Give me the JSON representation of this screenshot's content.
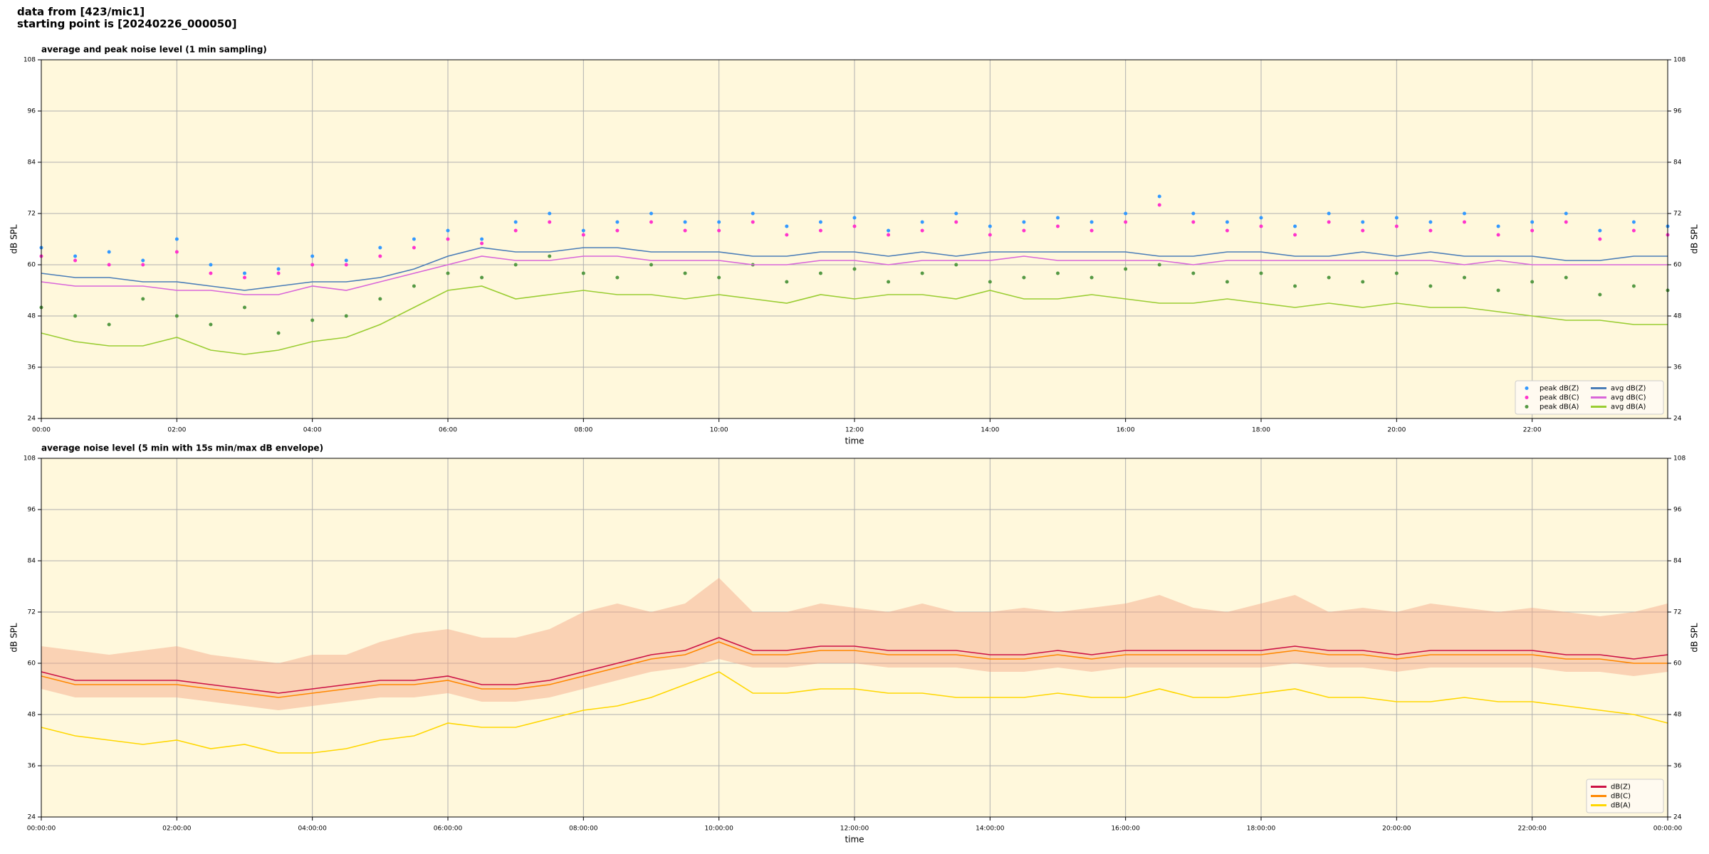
{
  "header": {
    "line1": "data from [423/mic1]",
    "line2": "starting point is [20240226_000050]"
  },
  "chart_data": [
    {
      "type": "line",
      "title": "average and peak noise level (1 min sampling)",
      "xlabel": "time",
      "ylabel": "dB SPL",
      "background": "#fff8dc",
      "grid": true,
      "legend": "lower right",
      "legend_columns": 2,
      "xlim": [
        0,
        24
      ],
      "ylim": [
        24,
        108
      ],
      "yticks": [
        24,
        36,
        48,
        60,
        72,
        84,
        96,
        108
      ],
      "xticks": [
        {
          "value": 0,
          "label": "00:00"
        },
        {
          "value": 2,
          "label": "02:00"
        },
        {
          "value": 4,
          "label": "04:00"
        },
        {
          "value": 6,
          "label": "06:00"
        },
        {
          "value": 8,
          "label": "08:00"
        },
        {
          "value": 10,
          "label": "10:00"
        },
        {
          "value": 12,
          "label": "12:00"
        },
        {
          "value": 14,
          "label": "14:00"
        },
        {
          "value": 16,
          "label": "16:00"
        },
        {
          "value": 18,
          "label": "18:00"
        },
        {
          "value": 20,
          "label": "20:00"
        },
        {
          "value": 22,
          "label": "22:00"
        }
      ],
      "x": [
        0,
        0.5,
        1,
        1.5,
        2,
        2.5,
        3,
        3.5,
        4,
        4.5,
        5,
        5.5,
        6,
        6.5,
        7,
        7.5,
        8,
        8.5,
        9,
        9.5,
        10,
        10.5,
        11,
        11.5,
        12,
        12.5,
        13,
        13.5,
        14,
        14.5,
        15,
        15.5,
        16,
        16.5,
        17,
        17.5,
        18,
        18.5,
        19,
        19.5,
        20,
        20.5,
        21,
        21.5,
        22,
        22.5,
        23,
        23.5,
        24
      ],
      "series": [
        {
          "name": "peak dB(Z)",
          "style": "points",
          "color": "#3399ff",
          "values": [
            64,
            62,
            63,
            61,
            66,
            60,
            58,
            59,
            62,
            61,
            64,
            66,
            68,
            66,
            70,
            72,
            68,
            70,
            72,
            70,
            70,
            72,
            69,
            70,
            71,
            68,
            70,
            72,
            69,
            70,
            71,
            70,
            72,
            76,
            72,
            70,
            71,
            69,
            72,
            70,
            71,
            70,
            72,
            69,
            70,
            72,
            68,
            70,
            69
          ]
        },
        {
          "name": "peak dB(C)",
          "style": "points",
          "color": "#ff33cc",
          "values": [
            62,
            61,
            60,
            60,
            63,
            58,
            57,
            58,
            60,
            60,
            62,
            64,
            66,
            65,
            68,
            70,
            67,
            68,
            70,
            68,
            68,
            70,
            67,
            68,
            69,
            67,
            68,
            70,
            67,
            68,
            69,
            68,
            70,
            74,
            70,
            68,
            69,
            67,
            70,
            68,
            69,
            68,
            70,
            67,
            68,
            70,
            66,
            68,
            67
          ]
        },
        {
          "name": "peak dB(A)",
          "style": "points",
          "color": "#559944",
          "values": [
            50,
            48,
            46,
            52,
            48,
            46,
            50,
            44,
            47,
            48,
            52,
            55,
            58,
            57,
            60,
            62,
            58,
            57,
            60,
            58,
            57,
            60,
            56,
            58,
            59,
            56,
            58,
            60,
            56,
            57,
            58,
            57,
            59,
            60,
            58,
            56,
            58,
            55,
            57,
            56,
            58,
            55,
            57,
            54,
            56,
            57,
            53,
            55,
            54
          ]
        },
        {
          "name": "avg dB(Z)",
          "style": "line",
          "color": "#4a7db8",
          "values": [
            58,
            57,
            57,
            56,
            56,
            55,
            54,
            55,
            56,
            56,
            57,
            59,
            62,
            64,
            63,
            63,
            64,
            64,
            63,
            63,
            63,
            62,
            62,
            63,
            63,
            62,
            63,
            62,
            63,
            63,
            63,
            63,
            63,
            62,
            62,
            63,
            63,
            62,
            62,
            63,
            62,
            63,
            62,
            62,
            62,
            61,
            61,
            62,
            62
          ]
        },
        {
          "name": "avg dB(C)",
          "style": "line",
          "color": "#d966d9",
          "values": [
            56,
            55,
            55,
            55,
            54,
            54,
            53,
            53,
            55,
            54,
            56,
            58,
            60,
            62,
            61,
            61,
            62,
            62,
            61,
            61,
            61,
            60,
            60,
            61,
            61,
            60,
            61,
            61,
            61,
            62,
            61,
            61,
            61,
            61,
            60,
            61,
            61,
            61,
            61,
            61,
            61,
            61,
            60,
            61,
            60,
            60,
            60,
            60,
            60
          ]
        },
        {
          "name": "avg dB(A)",
          "style": "line",
          "color": "#9acd32",
          "values": [
            44,
            42,
            41,
            41,
            43,
            40,
            39,
            40,
            42,
            43,
            46,
            50,
            54,
            55,
            52,
            53,
            54,
            53,
            53,
            52,
            53,
            52,
            51,
            53,
            52,
            53,
            53,
            52,
            54,
            52,
            52,
            53,
            52,
            51,
            51,
            52,
            51,
            50,
            51,
            50,
            51,
            50,
            50,
            49,
            48,
            47,
            47,
            46,
            46
          ]
        }
      ]
    },
    {
      "type": "line",
      "title": "average noise level (5 min with 15s min/max dB envelope)",
      "xlabel": "time",
      "ylabel": "dB SPL",
      "background": "#fff8dc",
      "grid": true,
      "legend": "lower right",
      "legend_columns": 1,
      "xlim": [
        0,
        24
      ],
      "ylim": [
        24,
        108
      ],
      "yticks": [
        24,
        36,
        48,
        60,
        72,
        84,
        96,
        108
      ],
      "xticks": [
        {
          "value": 0,
          "label": "00:00:00"
        },
        {
          "value": 2,
          "label": "02:00:00"
        },
        {
          "value": 4,
          "label": "04:00:00"
        },
        {
          "value": 6,
          "label": "06:00:00"
        },
        {
          "value": 8,
          "label": "08:00:00"
        },
        {
          "value": 10,
          "label": "10:00:00"
        },
        {
          "value": 12,
          "label": "12:00:00"
        },
        {
          "value": 14,
          "label": "14:00:00"
        },
        {
          "value": 16,
          "label": "16:00:00"
        },
        {
          "value": 18,
          "label": "18:00:00"
        },
        {
          "value": 20,
          "label": "20:00:00"
        },
        {
          "value": 22,
          "label": "22:00:00"
        },
        {
          "value": 24,
          "label": "00:00:00"
        }
      ],
      "x": [
        0,
        0.5,
        1,
        1.5,
        2,
        2.5,
        3,
        3.5,
        4,
        4.5,
        5,
        5.5,
        6,
        6.5,
        7,
        7.5,
        8,
        8.5,
        9,
        9.5,
        10,
        10.5,
        11,
        11.5,
        12,
        12.5,
        13,
        13.5,
        14,
        14.5,
        15,
        15.5,
        16,
        16.5,
        17,
        17.5,
        18,
        18.5,
        19,
        19.5,
        20,
        20.5,
        21,
        21.5,
        22,
        22.5,
        23,
        23.5,
        24
      ],
      "envelope": {
        "color": "#f4a582",
        "low": [
          54,
          52,
          52,
          52,
          52,
          51,
          50,
          49,
          50,
          51,
          52,
          52,
          53,
          51,
          51,
          52,
          54,
          56,
          58,
          59,
          61,
          59,
          59,
          60,
          60,
          59,
          59,
          59,
          58,
          58,
          59,
          58,
          59,
          59,
          59,
          59,
          59,
          60,
          59,
          59,
          58,
          59,
          59,
          59,
          59,
          58,
          58,
          57,
          58
        ],
        "high": [
          64,
          63,
          62,
          63,
          64,
          62,
          61,
          60,
          62,
          62,
          65,
          67,
          68,
          66,
          66,
          68,
          72,
          74,
          72,
          74,
          80,
          72,
          72,
          74,
          73,
          72,
          74,
          72,
          72,
          73,
          72,
          73,
          74,
          76,
          73,
          72,
          74,
          76,
          72,
          73,
          72,
          74,
          73,
          72,
          73,
          72,
          71,
          72,
          74
        ]
      },
      "series": [
        {
          "name": "dB(Z)",
          "style": "line",
          "color": "#cc1144",
          "values": [
            58,
            56,
            56,
            56,
            56,
            55,
            54,
            53,
            54,
            55,
            56,
            56,
            57,
            55,
            55,
            56,
            58,
            60,
            62,
            63,
            66,
            63,
            63,
            64,
            64,
            63,
            63,
            63,
            62,
            62,
            63,
            62,
            63,
            63,
            63,
            63,
            63,
            64,
            63,
            63,
            62,
            63,
            63,
            63,
            63,
            62,
            62,
            61,
            62
          ]
        },
        {
          "name": "dB(C)",
          "style": "line",
          "color": "#ff8800",
          "values": [
            57,
            55,
            55,
            55,
            55,
            54,
            53,
            52,
            53,
            54,
            55,
            55,
            56,
            54,
            54,
            55,
            57,
            59,
            61,
            62,
            65,
            62,
            62,
            63,
            63,
            62,
            62,
            62,
            61,
            61,
            62,
            61,
            62,
            62,
            62,
            62,
            62,
            63,
            62,
            62,
            61,
            62,
            62,
            62,
            62,
            61,
            61,
            60,
            60
          ]
        },
        {
          "name": "dB(A)",
          "style": "line",
          "color": "#ffd700",
          "values": [
            45,
            43,
            42,
            41,
            42,
            40,
            41,
            39,
            39,
            40,
            42,
            43,
            46,
            45,
            45,
            47,
            49,
            50,
            52,
            55,
            58,
            53,
            53,
            54,
            54,
            53,
            53,
            52,
            52,
            52,
            53,
            52,
            52,
            54,
            52,
            52,
            53,
            54,
            52,
            52,
            51,
            51,
            52,
            51,
            51,
            50,
            49,
            48,
            46
          ]
        }
      ]
    }
  ]
}
